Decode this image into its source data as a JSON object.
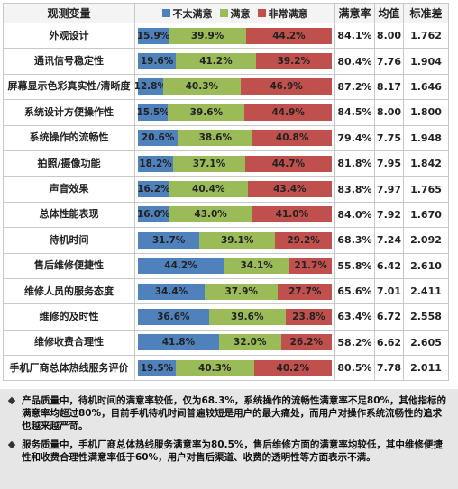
{
  "chart_data": {
    "type": "bar",
    "orientation": "horizontal",
    "stacked": true,
    "category_header": "观测变量",
    "categories": [
      "外观设计",
      "通讯信号稳定性",
      "屏幕显示色彩真实性/清晰度",
      "系统设计方便操作性",
      "系统操作的流畅性",
      "拍照/摄像功能",
      "声音效果",
      "总体性能表现",
      "待机时间",
      "售后维修便捷性",
      "维修人员的服务态度",
      "维修的及时性",
      "维修收费合理性",
      "手机厂商总体热线服务评价"
    ],
    "xlim": [
      0,
      100
    ],
    "series": [
      {
        "name": "不太满意",
        "color": "#4f81bd",
        "values": [
          15.9,
          19.6,
          12.8,
          15.5,
          20.6,
          18.2,
          16.2,
          16.0,
          31.7,
          44.2,
          34.4,
          36.6,
          41.8,
          19.5
        ],
        "value_labels": [
          "15.9%",
          "19.6%",
          "12.8%",
          "15.5%",
          "20.6%",
          "18.2%",
          "16.2%",
          "16.0%",
          "31.7%",
          "44.2%",
          "34.4%",
          "36.6%",
          "41.8%",
          "19.5%"
        ]
      },
      {
        "name": "满意",
        "color": "#9bbb59",
        "values": [
          39.9,
          41.2,
          40.3,
          39.6,
          38.6,
          37.1,
          40.4,
          43.0,
          39.1,
          34.1,
          37.9,
          39.6,
          32.0,
          40.3
        ],
        "value_labels": [
          "39.9%",
          "41.2%",
          "40.3%",
          "39.6%",
          "38.6%",
          "37.1%",
          "40.4%",
          "43.0%",
          "39.1%",
          "34.1%",
          "37.9%",
          "39.6%",
          "32.0%",
          "40.3%"
        ]
      },
      {
        "name": "非常满意",
        "color": "#c0504d",
        "values": [
          44.2,
          39.2,
          46.9,
          44.9,
          40.8,
          44.7,
          43.4,
          41.0,
          29.2,
          21.7,
          27.7,
          23.8,
          26.2,
          40.2
        ],
        "value_labels": [
          "44.2%",
          "39.2%",
          "46.9%",
          "44.9%",
          "40.8%",
          "44.7%",
          "43.4%",
          "41.0%",
          "29.2%",
          "21.7%",
          "27.7%",
          "23.8%",
          "26.2%",
          "40.2%"
        ]
      }
    ],
    "columns": [
      {
        "header": "满意率",
        "values": [
          "84.1%",
          "80.4%",
          "87.2%",
          "84.5%",
          "79.4%",
          "81.8%",
          "83.8%",
          "84.0%",
          "68.3%",
          "55.8%",
          "65.6%",
          "63.4%",
          "58.2%",
          "80.5%"
        ]
      },
      {
        "header": "均值",
        "values": [
          "8.00",
          "7.76",
          "8.17",
          "8.00",
          "7.75",
          "7.95",
          "7.97",
          "7.92",
          "7.24",
          "6.42",
          "7.01",
          "6.72",
          "6.62",
          "7.78"
        ]
      },
      {
        "header": "标准差",
        "values": [
          "1.762",
          "1.904",
          "1.646",
          "1.800",
          "1.948",
          "1.842",
          "1.765",
          "1.670",
          "2.092",
          "2.610",
          "2.411",
          "2.558",
          "2.605",
          "2.011"
        ]
      }
    ]
  },
  "notes": [
    "产品质量中，待机时间的满意率较低，仅为68.3%，系统操作的流畅性满意率不足80%，其他指标的满意率均超过80%，目前手机待机时间普遍较短是用户的最大痛处，而用户对操作系统流畅性的追求也越来越严苛。",
    "服务质量中，手机厂商总体热线服务满意率为80.5%，售后维修方面的满意率均较低，其中维修便捷性和收费合理性满意率低于60%，用户对售后渠道、收费的透明性等方面表示不满。"
  ]
}
